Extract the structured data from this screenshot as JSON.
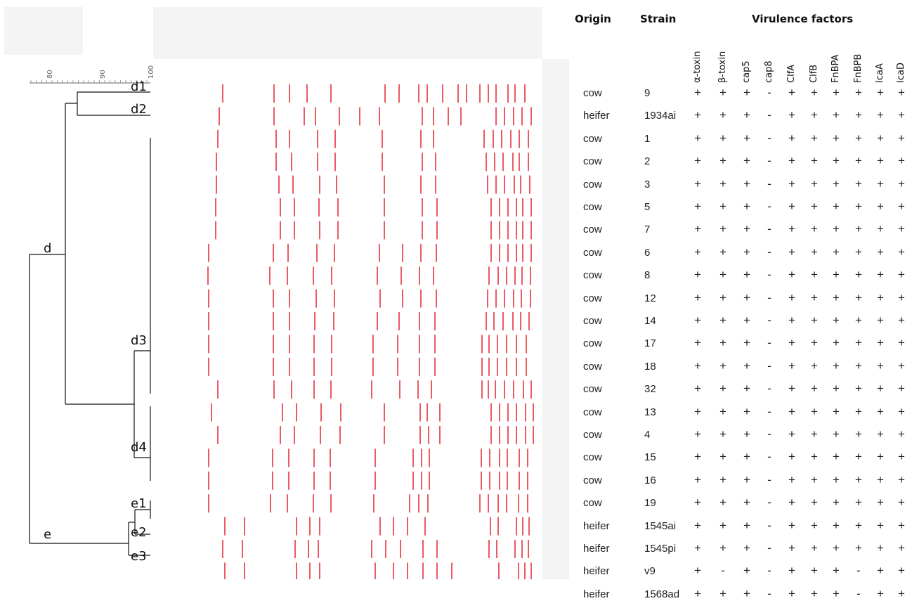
{
  "header": {
    "origin": "Origin",
    "strain": "Strain",
    "virulence": "Virulence factors"
  },
  "factors": [
    "α-toxin",
    "β-toxin",
    "cap5",
    "cap8",
    "ClfA",
    "ClfB",
    "FnBPA",
    "FnBPB",
    "IcaA",
    "IcaD"
  ],
  "scale": {
    "ticks": [
      "80",
      "90",
      "100"
    ]
  },
  "clusters": {
    "d": "d",
    "e": "e",
    "d1": "d1",
    "d2": "d2",
    "d3": "d3",
    "d4": "d4",
    "e1": "e1",
    "e2": "e2",
    "e3": "e3"
  },
  "rows": [
    {
      "origin": "cow",
      "strain": "9",
      "v": [
        "+",
        "+",
        "+",
        "-",
        "+",
        "+",
        "+",
        "+",
        "+",
        "+"
      ],
      "bands": [
        317,
        390,
        412,
        437,
        471,
        548,
        568,
        596,
        608,
        630,
        652,
        664,
        683,
        695,
        706,
        723,
        733,
        747
      ]
    },
    {
      "origin": "heifer",
      "strain": "1934ai",
      "v": [
        "+",
        "+",
        "+",
        "-",
        "+",
        "+",
        "+",
        "+",
        "+",
        "+"
      ],
      "bands": [
        312,
        390,
        433,
        449,
        483,
        512,
        540,
        601,
        617,
        638,
        656,
        706,
        718,
        731,
        743,
        756
      ]
    },
    {
      "origin": "cow",
      "strain": "1",
      "v": [
        "+",
        "+",
        "+",
        "-",
        "+",
        "+",
        "+",
        "+",
        "+",
        "+"
      ],
      "bands": [
        310,
        393,
        412,
        452,
        477,
        544,
        599,
        617,
        689,
        702,
        714,
        727,
        739,
        752
      ]
    },
    {
      "origin": "cow",
      "strain": "2",
      "v": [
        "+",
        "+",
        "+",
        "-",
        "+",
        "+",
        "+",
        "+",
        "+",
        "+"
      ],
      "bands": [
        308,
        393,
        415,
        452,
        477,
        544,
        601,
        620,
        692,
        704,
        716,
        730,
        739,
        752
      ]
    },
    {
      "origin": "cow",
      "strain": "3",
      "v": [
        "+",
        "+",
        "+",
        "-",
        "+",
        "+",
        "+",
        "+",
        "+",
        "+"
      ],
      "bands": [
        308,
        397,
        417,
        455,
        479,
        547,
        599,
        620,
        694,
        706,
        718,
        732,
        741,
        754
      ]
    },
    {
      "origin": "cow",
      "strain": "5",
      "v": [
        "+",
        "+",
        "+",
        "-",
        "+",
        "+",
        "+",
        "+",
        "+",
        "+"
      ],
      "bands": [
        307,
        399,
        419,
        454,
        481,
        547,
        601,
        622,
        699,
        711,
        723,
        735,
        744,
        756
      ]
    },
    {
      "origin": "cow",
      "strain": "7",
      "v": [
        "+",
        "+",
        "+",
        "-",
        "+",
        "+",
        "+",
        "+",
        "+",
        "+"
      ],
      "bands": [
        307,
        399,
        419,
        455,
        481,
        547,
        601,
        622,
        699,
        711,
        723,
        735,
        744,
        756
      ]
    },
    {
      "origin": "cow",
      "strain": "6",
      "v": [
        "+",
        "+",
        "+",
        "-",
        "+",
        "+",
        "+",
        "+",
        "+",
        "+"
      ],
      "bands": [
        297,
        389,
        410,
        451,
        476,
        540,
        573,
        599,
        621,
        699,
        711,
        723,
        735,
        744,
        756
      ]
    },
    {
      "origin": "cow",
      "strain": "8",
      "v": [
        "+",
        "+",
        "+",
        "-",
        "+",
        "+",
        "+",
        "+",
        "+",
        "+"
      ],
      "bands": [
        296,
        384,
        409,
        446,
        472,
        537,
        571,
        597,
        617,
        696,
        709,
        721,
        733,
        743,
        755
      ]
    },
    {
      "origin": "cow",
      "strain": "12",
      "v": [
        "+",
        "+",
        "+",
        "-",
        "+",
        "+",
        "+",
        "+",
        "+",
        "+"
      ],
      "bands": [
        297,
        389,
        412,
        450,
        476,
        541,
        573,
        599,
        621,
        694,
        706,
        718,
        731,
        742,
        755
      ]
    },
    {
      "origin": "cow",
      "strain": "14",
      "v": [
        "+",
        "+",
        "+",
        "-",
        "+",
        "+",
        "+",
        "+",
        "+",
        "+"
      ],
      "bands": [
        297,
        389,
        412,
        448,
        475,
        537,
        568,
        597,
        619,
        692,
        703,
        716,
        730,
        741,
        753
      ]
    },
    {
      "origin": "cow",
      "strain": "17",
      "v": [
        "+",
        "+",
        "+",
        "-",
        "+",
        "+",
        "+",
        "+",
        "+",
        "+"
      ],
      "bands": [
        297,
        389,
        412,
        447,
        472,
        531,
        566,
        597,
        619,
        686,
        696,
        708,
        721,
        735,
        749
      ]
    },
    {
      "origin": "cow",
      "strain": "18",
      "v": [
        "+",
        "+",
        "+",
        "-",
        "+",
        "+",
        "+",
        "+",
        "+",
        "+"
      ],
      "bands": [
        297,
        389,
        412,
        447,
        472,
        531,
        566,
        597,
        619,
        686,
        696,
        708,
        721,
        735,
        749
      ]
    },
    {
      "origin": "cow",
      "strain": "32",
      "v": [
        "+",
        "+",
        "+",
        "-",
        "+",
        "+",
        "+",
        "+",
        "+",
        "+"
      ],
      "bands": [
        310,
        390,
        415,
        447,
        471,
        529,
        569,
        595,
        614,
        686,
        695,
        705,
        718,
        731,
        745,
        756
      ]
    },
    {
      "origin": "cow",
      "strain": "13",
      "v": [
        "+",
        "+",
        "+",
        "-",
        "+",
        "+",
        "+",
        "+",
        "+",
        "+"
      ],
      "bands": [
        301,
        402,
        422,
        457,
        485,
        547,
        598,
        608,
        626,
        699,
        711,
        723,
        735,
        748,
        759
      ]
    },
    {
      "origin": "cow",
      "strain": "4",
      "v": [
        "+",
        "+",
        "+",
        "-",
        "+",
        "+",
        "+",
        "+",
        "+",
        "+"
      ],
      "bands": [
        310,
        399,
        419,
        456,
        484,
        547,
        598,
        610,
        626,
        699,
        711,
        723,
        735,
        748,
        759
      ]
    },
    {
      "origin": "cow",
      "strain": "15",
      "v": [
        "+",
        "+",
        "+",
        "-",
        "+",
        "+",
        "+",
        "+",
        "+",
        "+"
      ],
      "bands": [
        297,
        388,
        411,
        447,
        470,
        534,
        588,
        600,
        611,
        685,
        697,
        711,
        722,
        739,
        751
      ]
    },
    {
      "origin": "cow",
      "strain": "16",
      "v": [
        "+",
        "+",
        "+",
        "-",
        "+",
        "+",
        "+",
        "+",
        "+",
        "+"
      ],
      "bands": [
        297,
        388,
        411,
        447,
        470,
        534,
        588,
        600,
        611,
        685,
        697,
        711,
        722,
        739,
        751
      ]
    },
    {
      "origin": "cow",
      "strain": "19",
      "v": [
        "+",
        "+",
        "+",
        "-",
        "+",
        "+",
        "+",
        "+",
        "+",
        "+"
      ],
      "bands": [
        297,
        385,
        409,
        446,
        471,
        532,
        583,
        596,
        609,
        683,
        695,
        709,
        721,
        738,
        751
      ]
    },
    {
      "origin": "heifer",
      "strain": "1545ai",
      "v": [
        "+",
        "+",
        "+",
        "-",
        "+",
        "+",
        "+",
        "+",
        "+",
        "+"
      ],
      "bands": [
        320,
        348,
        422,
        441,
        455,
        541,
        560,
        580,
        605,
        698,
        709,
        735,
        744,
        753
      ]
    },
    {
      "origin": "heifer",
      "strain": "1545pi",
      "v": [
        "+",
        "+",
        "+",
        "-",
        "+",
        "+",
        "+",
        "+",
        "+",
        "+"
      ],
      "bands": [
        317,
        345,
        420,
        439,
        453,
        529,
        549,
        570,
        602,
        622,
        696,
        707,
        733,
        743,
        752
      ]
    },
    {
      "origin": "heifer",
      "strain": "v9",
      "v": [
        "+",
        "-",
        "+",
        "-",
        "+",
        "+",
        "+",
        "-",
        "+",
        "+"
      ],
      "bands": [
        320,
        348,
        422,
        441,
        455,
        534,
        560,
        580,
        602,
        622,
        643,
        710,
        738,
        747,
        756
      ]
    },
    {
      "origin": "heifer",
      "strain": "1568ad",
      "v": [
        "+",
        "+",
        "+",
        "-",
        "+",
        "+",
        "+",
        "-",
        "+",
        "+"
      ],
      "bands": [
        317,
        344,
        420,
        438,
        452,
        534,
        555,
        576,
        598,
        618,
        681,
        690,
        708,
        733,
        742,
        751
      ]
    }
  ]
}
